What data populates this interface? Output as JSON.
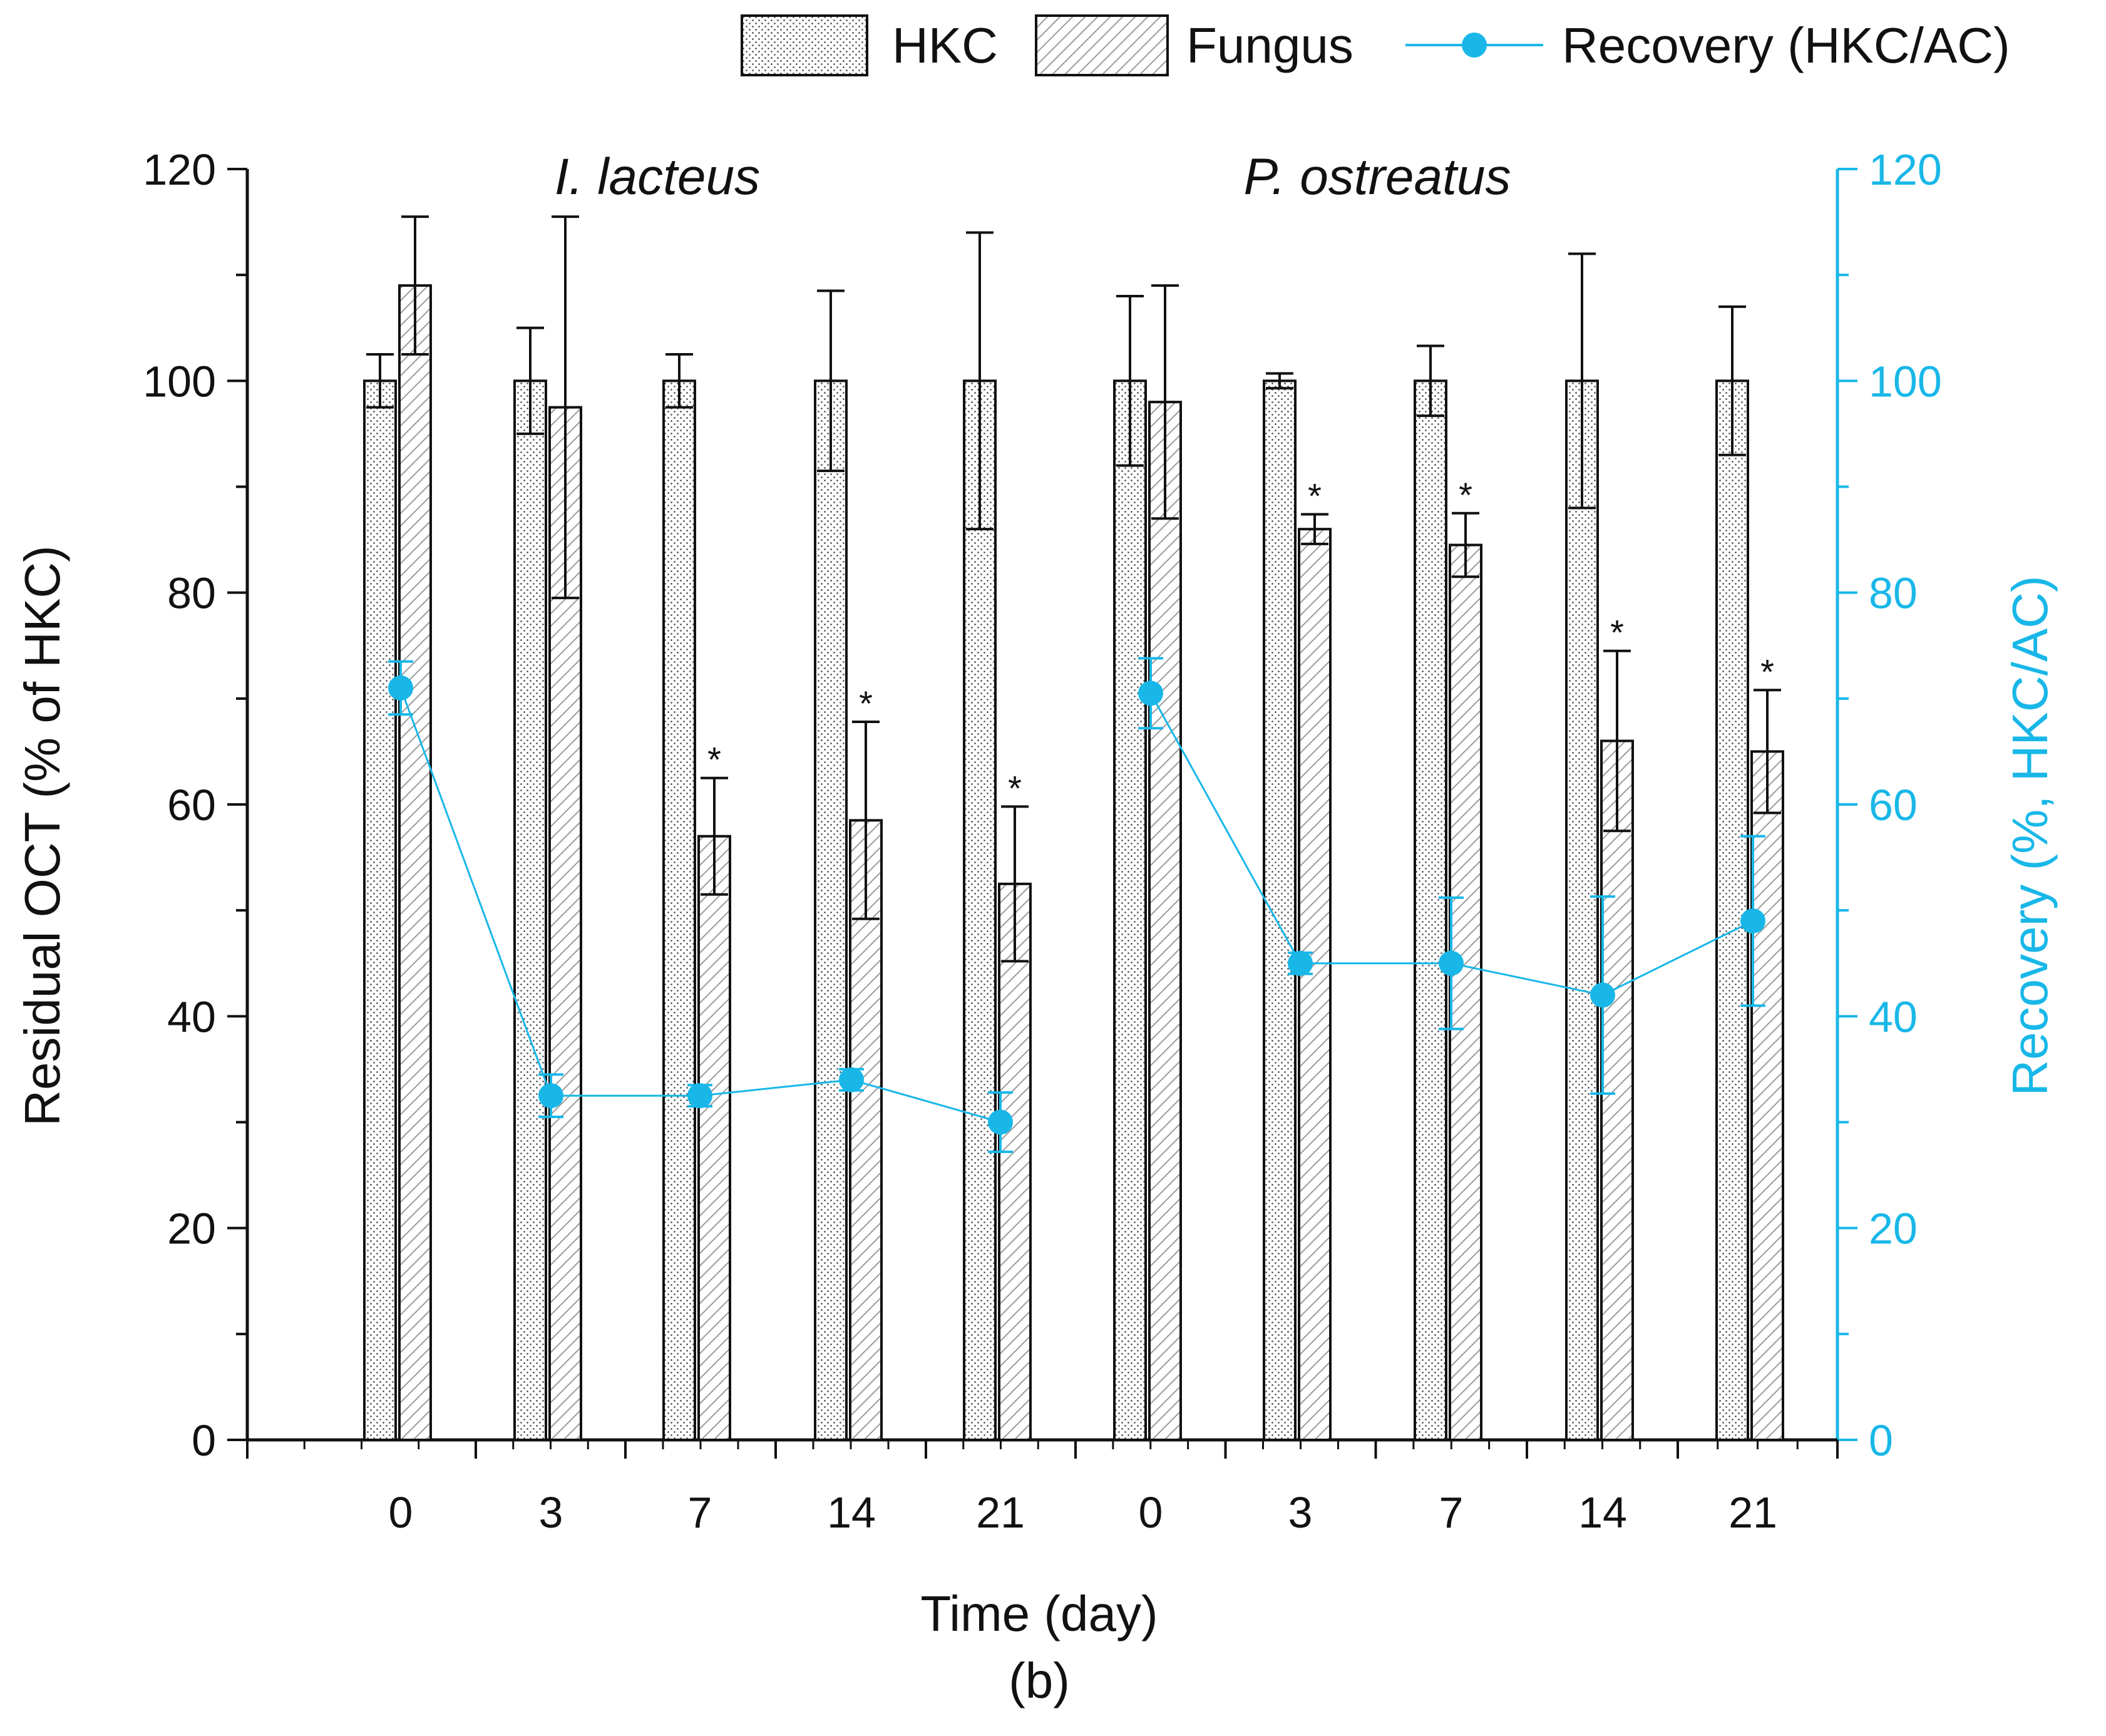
{
  "chart_data": {
    "type": "bar",
    "subplot_label": "(b)",
    "xlabel": "Time (day)",
    "ylabel": "Residual OCT (% of HKC)",
    "ylabel_right": "Recovery (%, HKC/AC)",
    "ylim": [
      0,
      120
    ],
    "ylim_right": [
      0,
      120
    ],
    "yticks": [
      0,
      20,
      40,
      60,
      80,
      100,
      120
    ],
    "yticks_right": [
      0,
      20,
      40,
      60,
      80,
      100,
      120
    ],
    "colors": {
      "line": "#19b7e8",
      "bars": "#111111",
      "hkc_dots": "#555555",
      "fungus_hatch": "#9a9a9a"
    },
    "legend": {
      "position": "top-right",
      "entries": [
        {
          "label": "HKC",
          "marker": "dotted-bar"
        },
        {
          "label": "Fungus",
          "marker": "hatched-bar"
        },
        {
          "label": "Recovery (HKC/AC)",
          "marker": "line-circle"
        }
      ]
    },
    "significance_marker": "*",
    "groups": [
      {
        "name": "I. lacteus",
        "categories": [
          "0",
          "3",
          "7",
          "14",
          "21"
        ],
        "series": [
          {
            "name": "HKC",
            "values": [
              100,
              100,
              100,
              100,
              100
            ],
            "errors": [
              2.5,
              5,
              2.5,
              8.5,
              14
            ]
          },
          {
            "name": "Fungus",
            "values": [
              109,
              97.5,
              57,
              58.5,
              52.5
            ],
            "errors": [
              6.5,
              18,
              5.5,
              9.3,
              7.3
            ],
            "significant": [
              false,
              false,
              true,
              true,
              true
            ]
          },
          {
            "name": "Recovery (HKC/AC)",
            "axis": "right",
            "values": [
              71,
              32.5,
              32.5,
              34,
              30
            ],
            "errors": [
              2.5,
              2,
              1,
              1,
              2.8
            ]
          }
        ]
      },
      {
        "name": "P. ostreatus",
        "categories": [
          "0",
          "3",
          "7",
          "14",
          "21"
        ],
        "series": [
          {
            "name": "HKC",
            "values": [
              100,
              100,
              100,
              100,
              100
            ],
            "errors": [
              8,
              0.7,
              3.3,
              12,
              7
            ]
          },
          {
            "name": "Fungus",
            "values": [
              98,
              86,
              84.5,
              66,
              65
            ],
            "errors": [
              11,
              1.4,
              3,
              8.5,
              5.8
            ],
            "significant": [
              false,
              true,
              true,
              true,
              true
            ]
          },
          {
            "name": "Recovery (HKC/AC)",
            "axis": "right",
            "values": [
              70.5,
              45,
              45,
              42,
              49
            ],
            "errors": [
              3.3,
              1,
              6.2,
              9.3,
              8
            ]
          }
        ]
      }
    ]
  }
}
